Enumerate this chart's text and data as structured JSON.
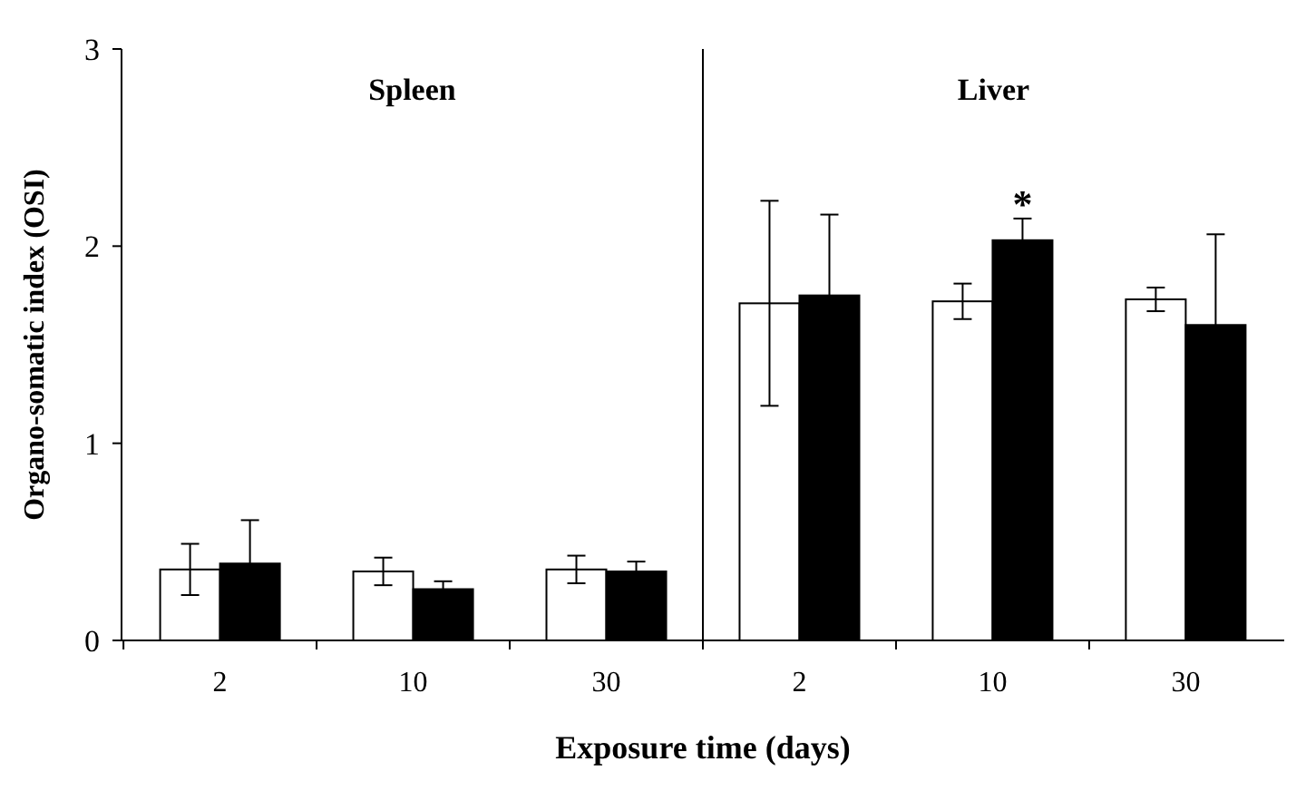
{
  "chart_data": {
    "type": "bar",
    "xlabel": "Exposure time (days)",
    "ylabel": "Organo-somatic index (OSI)",
    "categories": [
      "2",
      "10",
      "30",
      "2",
      "10",
      "30"
    ],
    "series": [
      {
        "color": "#ffffff",
        "values": [
          0.36,
          0.35,
          0.36,
          1.71,
          1.72,
          1.73
        ],
        "errors": [
          0.13,
          0.07,
          0.07,
          0.52,
          0.09,
          0.06
        ]
      },
      {
        "color": "#000000",
        "values": [
          0.39,
          0.26,
          0.35,
          1.75,
          2.03,
          1.6
        ],
        "errors": [
          0.22,
          0.04,
          0.05,
          0.41,
          0.11,
          0.46
        ]
      }
    ],
    "ylim": [
      0,
      3
    ],
    "yticks": [
      0,
      1,
      2,
      3
    ],
    "grid": false,
    "annotations": [
      "Spleen",
      "Liver",
      "*"
    ]
  }
}
